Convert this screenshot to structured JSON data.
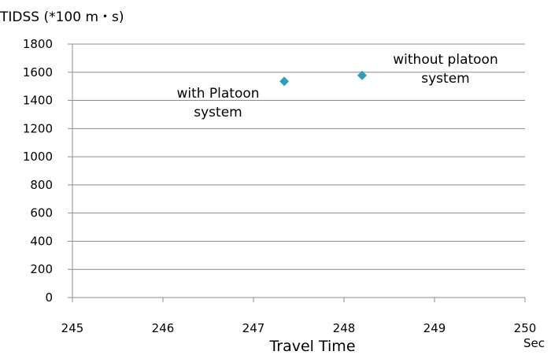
{
  "chart_data": {
    "type": "scatter",
    "ylabel": "TIDSS (*100 m・s)",
    "xlabel": "Travel Time",
    "x_unit": "Sec",
    "xlim": [
      245,
      250
    ],
    "ylim": [
      0,
      1800
    ],
    "x_ticks": [
      "245",
      "246",
      "247",
      "248",
      "249",
      "250"
    ],
    "y_ticks": [
      "0",
      "200",
      "400",
      "600",
      "800",
      "1000",
      "1200",
      "1400",
      "1600",
      "1800"
    ],
    "grid": "horizontal",
    "points": [
      {
        "x": 247.34,
        "y": 1535,
        "label_lines": [
          "with Platoon",
          "system"
        ]
      },
      {
        "x": 248.2,
        "y": 1578,
        "label_lines": [
          "without platoon",
          "system"
        ]
      }
    ],
    "marker_color": "#2e9fb8",
    "grid_color": "#8c8c8c"
  }
}
